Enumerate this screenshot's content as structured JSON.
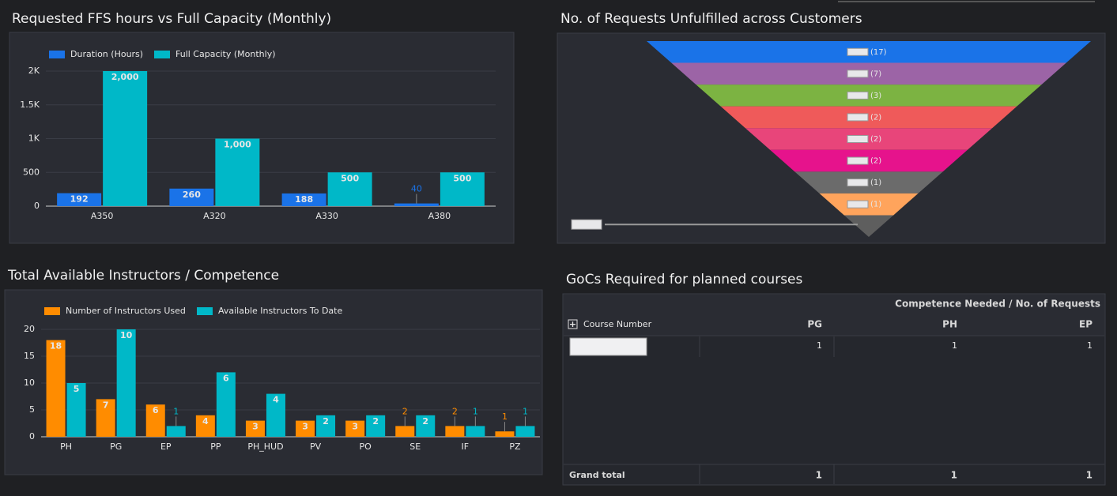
{
  "chart_data": [
    {
      "type": "bar",
      "title": "Requested FFS hours vs Full Capacity (Monthly)",
      "categories": [
        "A350",
        "A320",
        "A330",
        "A380"
      ],
      "series": [
        {
          "name": "Duration (Hours)",
          "color": "#1a73e8",
          "values": [
            192,
            260,
            188,
            40
          ]
        },
        {
          "name": "Full Capacity (Monthly)",
          "color": "#00b8c8",
          "values": [
            2000,
            1000,
            500,
            500
          ],
          "value_labels": [
            "2,000",
            "1,000",
            "500",
            "500"
          ]
        }
      ],
      "ylim": [
        0,
        2000
      ],
      "yticks": [
        0,
        500,
        {
          "value": 1000,
          "label": "1K"
        },
        {
          "value": 1500,
          "label": "1.5K"
        },
        {
          "value": 2000,
          "label": "2K"
        }
      ],
      "grid": true
    },
    {
      "type": "funnel",
      "title": "No. of Requests Unfulfilled across Customers",
      "categories": [
        null,
        null,
        null,
        null,
        null,
        null,
        null,
        null,
        null
      ],
      "values": [
        17,
        7,
        3,
        2,
        2,
        2,
        1,
        1,
        1
      ],
      "value_labels": [
        "(17)",
        "(7)",
        "(3)",
        "(2)",
        "(2)",
        "(2)",
        "(1)",
        "(1)",
        null
      ],
      "colors": [
        "#1a73e8",
        "#9c64a6",
        "#7cb342",
        "#ef5a5a",
        "#e8457a",
        "#e6138c",
        "#6b6b6b",
        "#ffa45c",
        "#5e5e5e"
      ]
    },
    {
      "type": "bar",
      "title": "Total Available Instructors / Competence",
      "categories": [
        "PH",
        "PG",
        "EP",
        "PP",
        "PH_HUD",
        "PV",
        "PO",
        "SE",
        "IF",
        "PZ"
      ],
      "series": [
        {
          "name": "Number of Instructors Used",
          "color": "#ff8c00",
          "values": [
            18,
            7,
            6,
            4,
            3,
            3,
            3,
            2,
            2,
            1
          ]
        },
        {
          "name": "Available Instructors To Date",
          "color": "#00b8c8",
          "axis": "y2",
          "values": [
            5,
            10,
            1,
            6,
            4,
            2,
            2,
            2,
            1,
            1
          ]
        }
      ],
      "ylim": [
        0,
        20
      ],
      "yticks": [
        0,
        5,
        10,
        15,
        20
      ],
      "y2lim": [
        0,
        10
      ],
      "grid": true
    }
  ],
  "table": {
    "title": "GoCs Required for planned courses",
    "header": "Competence Needed / No. of Requests",
    "columns": [
      "Course Number",
      "PG",
      "PH",
      "EP"
    ],
    "rows": [
      [
        1,
        1,
        1
      ]
    ],
    "total_label": "Grand total",
    "totals": [
      1,
      1,
      1
    ]
  }
}
